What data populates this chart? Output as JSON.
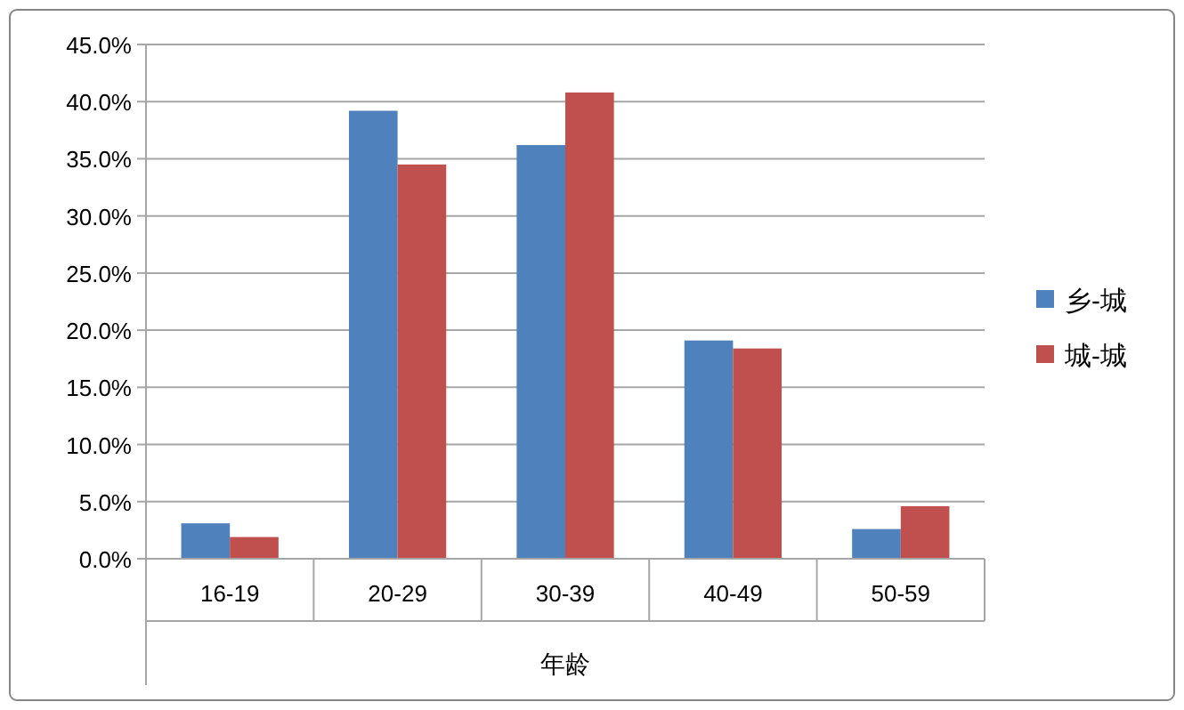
{
  "chart_data": {
    "type": "bar",
    "xlabel": "年龄",
    "categories": [
      "16-19",
      "20-29",
      "30-39",
      "40-49",
      "50-59"
    ],
    "series": [
      {
        "name": "乡-城",
        "color": "#4f81bd",
        "values": [
          3.1,
          39.2,
          36.2,
          19.1,
          2.6
        ]
      },
      {
        "name": "城-城",
        "color": "#c0504d",
        "values": [
          1.9,
          34.5,
          40.8,
          18.4,
          4.6
        ]
      }
    ],
    "ylim": [
      0,
      45
    ],
    "yticks": [
      {
        "value": 0,
        "label": "0.0%"
      },
      {
        "value": 5,
        "label": "5.0%"
      },
      {
        "value": 10,
        "label": "10.0%"
      },
      {
        "value": 15,
        "label": "15.0%"
      },
      {
        "value": 20,
        "label": "20.0%"
      },
      {
        "value": 25,
        "label": "25.0%"
      },
      {
        "value": 30,
        "label": "30.0%"
      },
      {
        "value": 35,
        "label": "35.0%"
      },
      {
        "value": 40,
        "label": "40.0%"
      },
      {
        "value": 45,
        "label": "45.0%"
      }
    ],
    "grid": "y",
    "legend": "right"
  }
}
